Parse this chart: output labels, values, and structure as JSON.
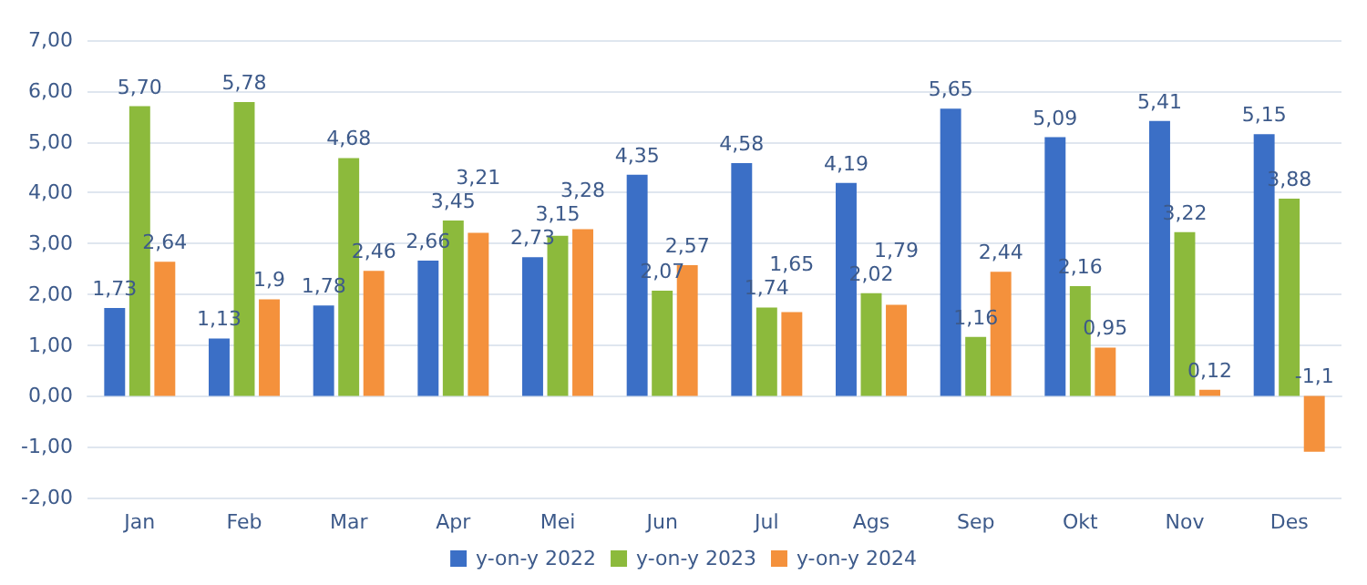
{
  "chart_data": {
    "type": "bar",
    "categories": [
      "Jan",
      "Feb",
      "Mar",
      "Apr",
      "Mei",
      "Jun",
      "Jul",
      "Ags",
      "Sep",
      "Okt",
      "Nov",
      "Des"
    ],
    "series": [
      {
        "name": "y-on-y 2022",
        "color": "#3b6fc6",
        "values": [
          1.73,
          1.13,
          1.78,
          2.66,
          2.73,
          4.35,
          4.58,
          4.19,
          5.65,
          5.09,
          5.41,
          5.15
        ],
        "value_labels": [
          "1,73",
          "1,13",
          "1,78",
          "2,66",
          "2,73",
          "4,35",
          "4,58",
          "4,19",
          "5,65",
          "5,09",
          "5,41",
          "5,15"
        ]
      },
      {
        "name": "y-on-y 2023",
        "color": "#8cba3c",
        "values": [
          5.7,
          5.78,
          4.68,
          3.45,
          3.15,
          2.07,
          1.74,
          2.02,
          1.16,
          2.16,
          3.22,
          3.88
        ],
        "value_labels": [
          "5,70",
          "5,78",
          "4,68",
          "3,45",
          "3,15",
          "2,07",
          "1,74",
          "2,02",
          "1,16",
          "2,16",
          "3,22",
          "3,88"
        ]
      },
      {
        "name": "y-on-y 2024",
        "color": "#f4913c",
        "values": [
          2.64,
          1.9,
          2.46,
          3.21,
          3.28,
          2.57,
          1.65,
          1.79,
          2.44,
          0.95,
          0.12,
          -1.1
        ],
        "value_labels": [
          "2,64",
          "1,9",
          "2,46",
          "3,21",
          "3,28",
          "2,57",
          "1,65",
          "1,79",
          "2,44",
          "0,95",
          "0,12",
          "-1,1"
        ]
      }
    ],
    "ylim": [
      -2,
      7
    ],
    "yticks": [
      {
        "value": -2,
        "label": "-2,00"
      },
      {
        "value": -1,
        "label": "-1,00"
      },
      {
        "value": 0,
        "label": "0,00"
      },
      {
        "value": 1,
        "label": "1,00"
      },
      {
        "value": 2,
        "label": "2,00"
      },
      {
        "value": 3,
        "label": "3,00"
      },
      {
        "value": 4,
        "label": "4,00"
      },
      {
        "value": 5,
        "label": "5,00"
      },
      {
        "value": 6,
        "label": "6,00"
      },
      {
        "value": 7,
        "label": "7,00"
      }
    ],
    "grid": "y",
    "legend": "bottom"
  }
}
